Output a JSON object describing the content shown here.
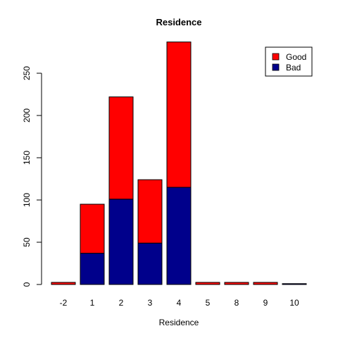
{
  "chart_data": {
    "type": "bar",
    "stacked": true,
    "title": "Residence",
    "xlabel": "Residence",
    "ylabel": "",
    "categories": [
      "-2",
      "1",
      "2",
      "3",
      "4",
      "5",
      "8",
      "9",
      "10"
    ],
    "series": [
      {
        "name": "Bad",
        "color": "#00008B",
        "values": [
          0,
          37,
          101,
          49,
          115,
          0,
          0,
          0,
          1
        ]
      },
      {
        "name": "Good",
        "color": "#FF0000",
        "values": [
          1,
          58,
          121,
          75,
          172,
          1,
          1,
          1,
          0
        ]
      }
    ],
    "ylim": [
      0,
      288
    ],
    "yticks": [
      0,
      50,
      100,
      150,
      200,
      250
    ],
    "legend": {
      "position": "top-right",
      "entries": [
        "Good",
        "Bad"
      ]
    },
    "grid": false
  }
}
